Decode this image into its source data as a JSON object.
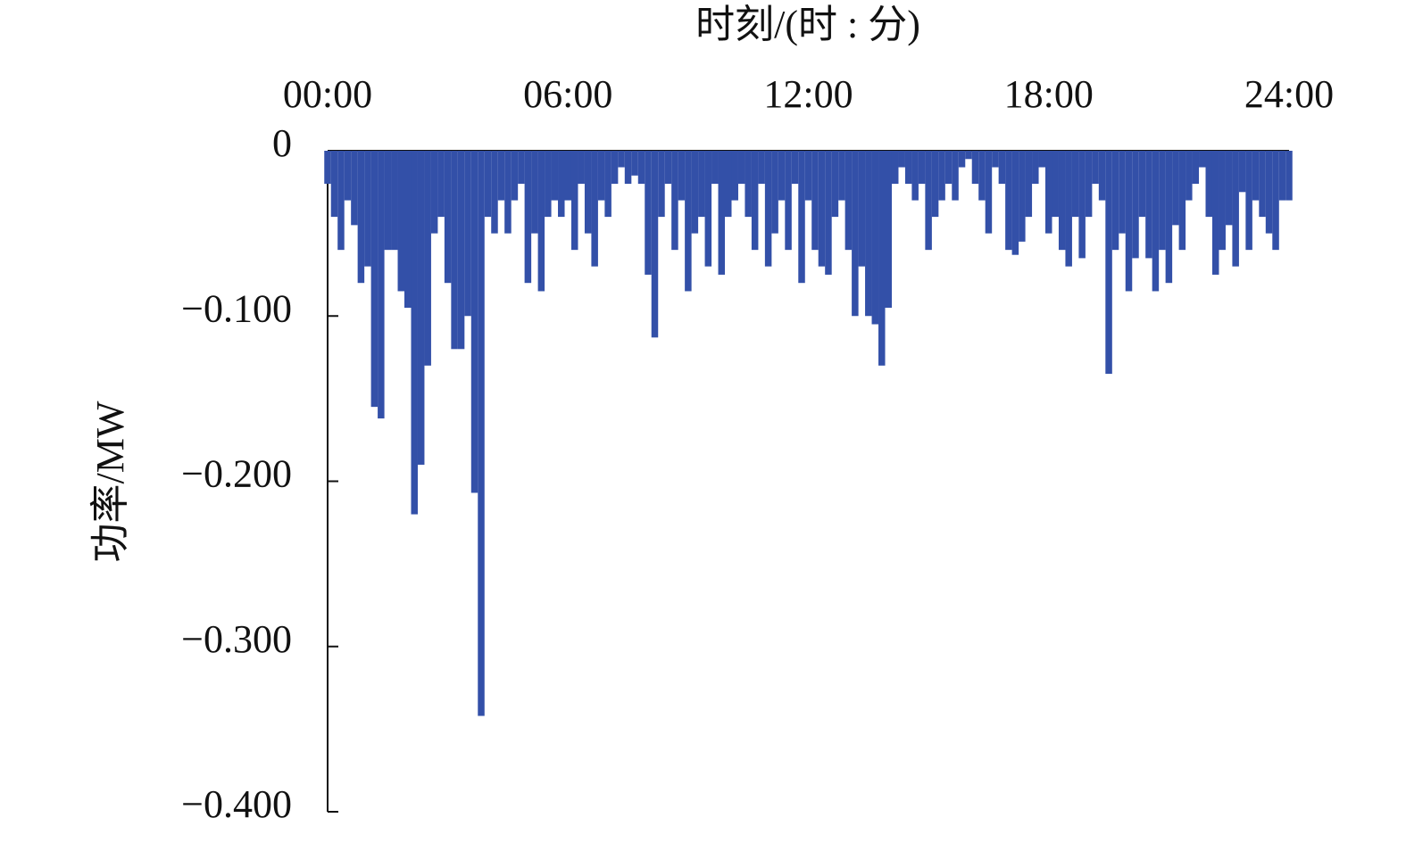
{
  "chart_data": {
    "type": "bar",
    "x_label": "时刻/(时 : 分)",
    "y_label": "功率/MW",
    "color": "#3350a8",
    "xlim": [
      0,
      1440
    ],
    "xticks": [
      {
        "value": 0,
        "label": "00:00"
      },
      {
        "value": 360,
        "label": "06:00"
      },
      {
        "value": 720,
        "label": "12:00"
      },
      {
        "value": 1080,
        "label": "18:00"
      },
      {
        "value": 1440,
        "label": "24:00"
      }
    ],
    "ylim": [
      -0.4,
      0
    ],
    "yticks": [
      0,
      {
        "value": -0.1,
        "label": "−0.100"
      },
      {
        "value": -0.2,
        "label": "−0.200"
      },
      {
        "value": -0.3,
        "label": "−0.300"
      },
      {
        "value": -0.4,
        "label": "−0.400"
      }
    ],
    "x": [
      0,
      10,
      20,
      30,
      40,
      50,
      60,
      70,
      80,
      90,
      100,
      110,
      120,
      130,
      140,
      150,
      160,
      170,
      180,
      190,
      200,
      210,
      220,
      230,
      240,
      250,
      260,
      270,
      280,
      290,
      300,
      310,
      320,
      330,
      340,
      350,
      360,
      370,
      380,
      390,
      400,
      410,
      420,
      430,
      440,
      450,
      460,
      470,
      480,
      490,
      500,
      510,
      520,
      530,
      540,
      550,
      560,
      570,
      580,
      590,
      600,
      610,
      620,
      630,
      640,
      650,
      660,
      670,
      680,
      690,
      700,
      710,
      720,
      730,
      740,
      750,
      760,
      770,
      780,
      790,
      800,
      810,
      820,
      830,
      840,
      850,
      860,
      870,
      880,
      890,
      900,
      910,
      920,
      930,
      940,
      950,
      960,
      970,
      980,
      990,
      1000,
      1010,
      1020,
      1030,
      1040,
      1050,
      1060,
      1070,
      1080,
      1090,
      1100,
      1110,
      1120,
      1130,
      1140,
      1150,
      1160,
      1170,
      1180,
      1190,
      1200,
      1210,
      1220,
      1230,
      1240,
      1250,
      1260,
      1270,
      1280,
      1290,
      1300,
      1310,
      1320,
      1330,
      1340,
      1350,
      1360,
      1370,
      1380,
      1390,
      1400,
      1410,
      1420,
      1430,
      1440
    ],
    "values": [
      -0.02,
      -0.04,
      -0.06,
      -0.03,
      -0.045,
      -0.08,
      -0.07,
      -0.155,
      -0.162,
      -0.06,
      -0.06,
      -0.085,
      -0.095,
      -0.22,
      -0.19,
      -0.13,
      -0.05,
      -0.04,
      -0.08,
      -0.12,
      -0.12,
      -0.1,
      -0.207,
      -0.342,
      -0.04,
      -0.05,
      -0.03,
      -0.05,
      -0.03,
      -0.02,
      -0.08,
      -0.05,
      -0.085,
      -0.04,
      -0.03,
      -0.04,
      -0.03,
      -0.06,
      -0.02,
      -0.05,
      -0.07,
      -0.03,
      -0.04,
      -0.02,
      -0.01,
      -0.02,
      -0.015,
      -0.02,
      -0.075,
      -0.113,
      -0.04,
      -0.02,
      -0.06,
      -0.03,
      -0.085,
      -0.05,
      -0.04,
      -0.07,
      -0.02,
      -0.075,
      -0.04,
      -0.03,
      -0.02,
      -0.04,
      -0.06,
      -0.02,
      -0.07,
      -0.05,
      -0.03,
      -0.06,
      -0.02,
      -0.08,
      -0.03,
      -0.06,
      -0.07,
      -0.075,
      -0.04,
      -0.03,
      -0.06,
      -0.1,
      -0.07,
      -0.1,
      -0.105,
      -0.13,
      -0.095,
      -0.02,
      -0.01,
      -0.02,
      -0.03,
      -0.02,
      -0.06,
      -0.04,
      -0.03,
      -0.02,
      -0.03,
      -0.01,
      -0.005,
      -0.02,
      -0.03,
      -0.05,
      -0.01,
      -0.02,
      -0.06,
      -0.063,
      -0.055,
      -0.04,
      -0.02,
      -0.01,
      -0.05,
      -0.04,
      -0.06,
      -0.07,
      -0.04,
      -0.065,
      -0.04,
      -0.02,
      -0.03,
      -0.135,
      -0.06,
      -0.05,
      -0.085,
      -0.065,
      -0.04,
      -0.065,
      -0.085,
      -0.06,
      -0.08,
      -0.045,
      -0.06,
      -0.03,
      -0.02,
      -0.01,
      -0.04,
      -0.075,
      -0.06,
      -0.045,
      -0.07,
      -0.025,
      -0.06,
      -0.03,
      -0.04,
      -0.05,
      -0.06,
      -0.03,
      -0.03
    ]
  }
}
